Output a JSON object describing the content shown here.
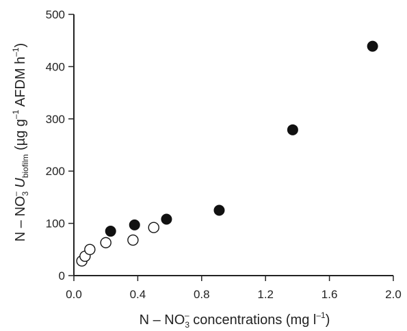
{
  "chart_data": {
    "type": "scatter",
    "xlim": [
      0.0,
      2.0
    ],
    "ylim": [
      0,
      500
    ],
    "x_ticks": [
      "0.0",
      "0.4",
      "0.8",
      "1.2",
      "1.6",
      "2.0"
    ],
    "y_ticks": [
      "0",
      "100",
      "200",
      "300",
      "400",
      "500"
    ],
    "xlabel": {
      "prefix": "N – NO",
      "sub": "3",
      "sup": "–",
      "suffix": " concentrations (mg l",
      "exp": "–1",
      "close": ")"
    },
    "ylabel": {
      "prefix": "N – NO",
      "sub": "3",
      "sup": "–",
      "var": " U",
      "var_sub": "biofilm",
      "unit": " (µg g",
      "exp1": "–1",
      "unit2": " AFDM h",
      "exp2": "–1",
      "close": ")"
    },
    "grid": false,
    "series": [
      {
        "marker": "filled-circle",
        "color": "#111111",
        "points": [
          {
            "x": 0.23,
            "y": 85
          },
          {
            "x": 0.38,
            "y": 97
          },
          {
            "x": 0.58,
            "y": 108
          },
          {
            "x": 0.91,
            "y": 125
          },
          {
            "x": 1.37,
            "y": 279
          },
          {
            "x": 1.87,
            "y": 439
          }
        ]
      },
      {
        "marker": "open-circle",
        "color": "#111111",
        "points": [
          {
            "x": 0.05,
            "y": 28
          },
          {
            "x": 0.07,
            "y": 37
          },
          {
            "x": 0.1,
            "y": 50
          },
          {
            "x": 0.2,
            "y": 63
          },
          {
            "x": 0.37,
            "y": 68
          },
          {
            "x": 0.5,
            "y": 92
          }
        ]
      }
    ]
  }
}
